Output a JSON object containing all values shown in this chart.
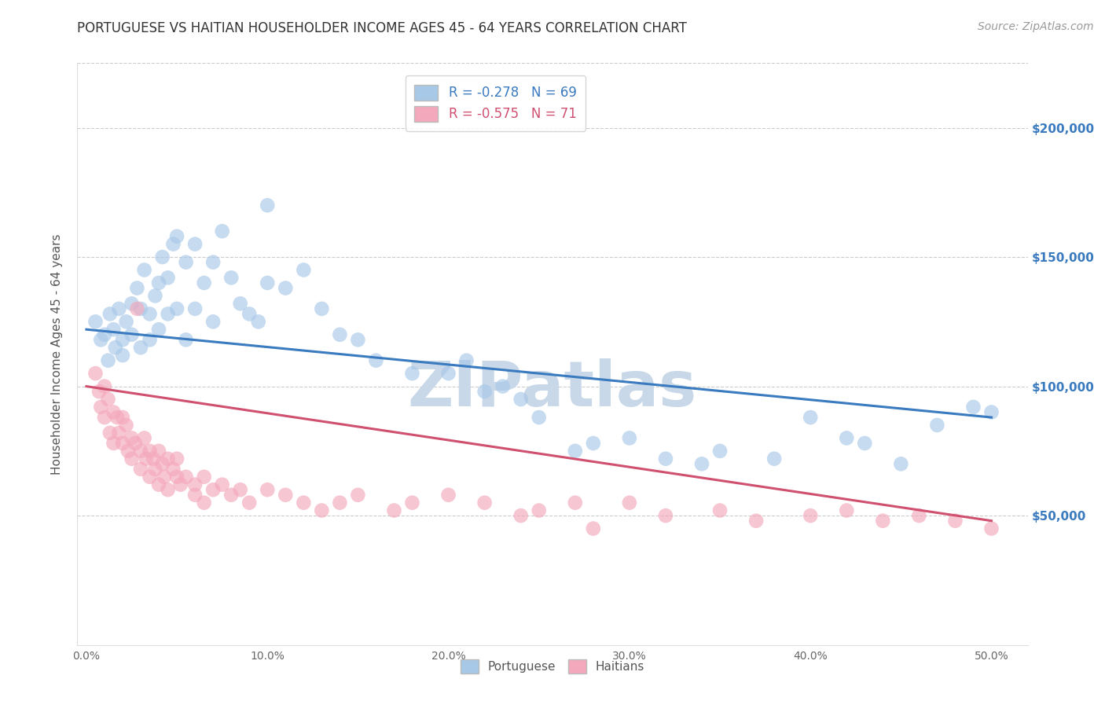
{
  "title": "PORTUGUESE VS HAITIAN HOUSEHOLDER INCOME AGES 45 - 64 YEARS CORRELATION CHART",
  "source": "Source: ZipAtlas.com",
  "ylabel": "Householder Income Ages 45 - 64 years",
  "xlabel_ticks": [
    "0.0%",
    "10.0%",
    "20.0%",
    "30.0%",
    "40.0%",
    "50.0%"
  ],
  "xlabel_vals": [
    0.0,
    0.1,
    0.2,
    0.3,
    0.4,
    0.5
  ],
  "ytick_labels": [
    "$50,000",
    "$100,000",
    "$150,000",
    "$200,000"
  ],
  "ytick_vals": [
    50000,
    100000,
    150000,
    200000
  ],
  "ylim": [
    0,
    225000
  ],
  "xlim": [
    -0.005,
    0.52
  ],
  "legend1_label": "R = -0.278   N = 69",
  "legend2_label": "R = -0.575   N = 71",
  "legend_label1": "Portuguese",
  "legend_label2": "Haitians",
  "blue_color": "#a8c8e8",
  "pink_color": "#f4a8bc",
  "blue_line_color": "#3a7abf",
  "pink_line_color": "#d05070",
  "watermark_color": "#c8d8e8",
  "background_color": "#ffffff",
  "title_fontsize": 12,
  "source_fontsize": 10,
  "axis_label_fontsize": 11,
  "tick_fontsize": 10,
  "blue_line_x0": 0.0,
  "blue_line_y0": 122000,
  "blue_line_x1": 0.5,
  "blue_line_y1": 88000,
  "pink_line_x0": 0.0,
  "pink_line_y0": 100000,
  "pink_line_x1": 0.5,
  "pink_line_y1": 48000,
  "portuguese_x": [
    0.005,
    0.008,
    0.01,
    0.012,
    0.013,
    0.015,
    0.016,
    0.018,
    0.02,
    0.02,
    0.022,
    0.025,
    0.025,
    0.028,
    0.03,
    0.03,
    0.032,
    0.035,
    0.035,
    0.038,
    0.04,
    0.04,
    0.042,
    0.045,
    0.045,
    0.048,
    0.05,
    0.05,
    0.055,
    0.055,
    0.06,
    0.06,
    0.065,
    0.07,
    0.07,
    0.075,
    0.08,
    0.085,
    0.09,
    0.095,
    0.1,
    0.1,
    0.11,
    0.12,
    0.13,
    0.14,
    0.15,
    0.16,
    0.18,
    0.2,
    0.21,
    0.22,
    0.23,
    0.24,
    0.25,
    0.27,
    0.28,
    0.3,
    0.32,
    0.34,
    0.35,
    0.38,
    0.4,
    0.42,
    0.43,
    0.45,
    0.47,
    0.49,
    0.5
  ],
  "portuguese_y": [
    125000,
    118000,
    120000,
    110000,
    128000,
    122000,
    115000,
    130000,
    118000,
    112000,
    125000,
    132000,
    120000,
    138000,
    130000,
    115000,
    145000,
    128000,
    118000,
    135000,
    140000,
    122000,
    150000,
    142000,
    128000,
    155000,
    158000,
    130000,
    148000,
    118000,
    155000,
    130000,
    140000,
    148000,
    125000,
    160000,
    142000,
    132000,
    128000,
    125000,
    170000,
    140000,
    138000,
    145000,
    130000,
    120000,
    118000,
    110000,
    105000,
    105000,
    110000,
    98000,
    100000,
    95000,
    88000,
    75000,
    78000,
    80000,
    72000,
    70000,
    75000,
    72000,
    88000,
    80000,
    78000,
    70000,
    85000,
    92000,
    90000
  ],
  "haitian_x": [
    0.005,
    0.007,
    0.008,
    0.01,
    0.01,
    0.012,
    0.013,
    0.015,
    0.015,
    0.017,
    0.018,
    0.02,
    0.02,
    0.022,
    0.023,
    0.025,
    0.025,
    0.027,
    0.028,
    0.03,
    0.03,
    0.032,
    0.033,
    0.035,
    0.035,
    0.037,
    0.038,
    0.04,
    0.04,
    0.042,
    0.043,
    0.045,
    0.045,
    0.048,
    0.05,
    0.05,
    0.052,
    0.055,
    0.06,
    0.06,
    0.065,
    0.065,
    0.07,
    0.075,
    0.08,
    0.085,
    0.09,
    0.1,
    0.11,
    0.12,
    0.13,
    0.14,
    0.15,
    0.17,
    0.18,
    0.2,
    0.22,
    0.24,
    0.25,
    0.27,
    0.28,
    0.3,
    0.32,
    0.35,
    0.37,
    0.4,
    0.42,
    0.44,
    0.46,
    0.48,
    0.5
  ],
  "haitian_y": [
    105000,
    98000,
    92000,
    100000,
    88000,
    95000,
    82000,
    90000,
    78000,
    88000,
    82000,
    88000,
    78000,
    85000,
    75000,
    80000,
    72000,
    78000,
    130000,
    75000,
    68000,
    80000,
    72000,
    75000,
    65000,
    72000,
    68000,
    75000,
    62000,
    70000,
    65000,
    72000,
    60000,
    68000,
    65000,
    72000,
    62000,
    65000,
    62000,
    58000,
    65000,
    55000,
    60000,
    62000,
    58000,
    60000,
    55000,
    60000,
    58000,
    55000,
    52000,
    55000,
    58000,
    52000,
    55000,
    58000,
    55000,
    50000,
    52000,
    55000,
    45000,
    55000,
    50000,
    52000,
    48000,
    50000,
    52000,
    48000,
    50000,
    48000,
    45000
  ]
}
